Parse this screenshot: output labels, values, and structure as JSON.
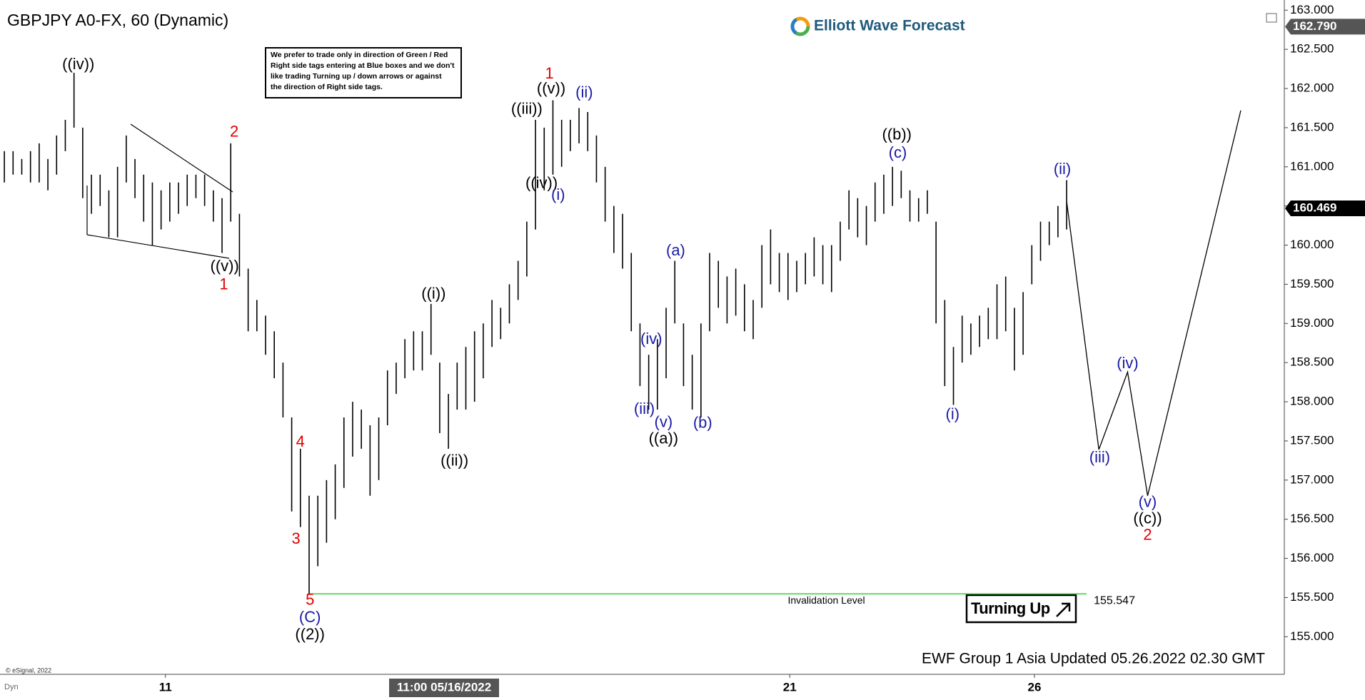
{
  "chart_data": {
    "type": "ohlc",
    "title": "GBPJPY A0-FX, 60 (Dynamic)",
    "logo": "Elliott Wave Forecast",
    "note": [
      "We prefer to trade only in direction of Green / Red",
      "Right side tags entering at Blue boxes and we don't",
      "like trading Turning up / down arrows or against",
      "the direction of Right side tags."
    ],
    "footer": "EWF Group 1 Asia  Updated 05.26.2022 02.30 GMT",
    "copyright": "© eSignal, 2022",
    "corner_label": "Dyn",
    "signal": "Turning Up",
    "bar_color": "#000000",
    "high": [
      161.2,
      161.2,
      161.1,
      161.2,
      161.3,
      161.1,
      161.4,
      161.6,
      162.2,
      161.5,
      160.9,
      160.9,
      160.7,
      161.0,
      161.4,
      161.1,
      160.9,
      160.8,
      160.7,
      160.8,
      160.8,
      160.9,
      160.9,
      160.9,
      160.7,
      160.6,
      161.3,
      160.4,
      159.7,
      159.3,
      159.1,
      158.9,
      158.5,
      157.8,
      157.4,
      156.8,
      156.8,
      157.0,
      157.2,
      157.8,
      158.0,
      157.9,
      157.7,
      157.8,
      158.4,
      158.5,
      158.8,
      158.9,
      158.9,
      159.25,
      158.5,
      158.1,
      158.5,
      158.7,
      158.9,
      159.0,
      159.3,
      159.2,
      159.5,
      159.8,
      160.3,
      161.6,
      161.5,
      161.85,
      161.6,
      161.6,
      161.75,
      161.7,
      161.4,
      161.0,
      160.5,
      160.4,
      159.9,
      159.0,
      158.6,
      158.8,
      159.2,
      159.8,
      159.0,
      158.6,
      159.0,
      159.9,
      159.8,
      159.6,
      159.7,
      159.5,
      159.3,
      160.0,
      160.2,
      159.9,
      159.9,
      159.8,
      159.9,
      160.1,
      160.0,
      160.0,
      160.3,
      160.7,
      160.6,
      160.5,
      160.8,
      160.9,
      161.0,
      160.95,
      160.7,
      160.6,
      160.7,
      160.3,
      159.3,
      158.7,
      159.1,
      159.0,
      159.1,
      159.2,
      159.5,
      159.6,
      159.2,
      159.4,
      160.0,
      160.3,
      160.3,
      160.5,
      160.83
    ],
    "low": [
      160.8,
      160.9,
      160.9,
      160.8,
      160.8,
      160.7,
      160.9,
      161.2,
      161.5,
      160.6,
      160.4,
      160.5,
      160.1,
      160.1,
      160.8,
      160.6,
      160.3,
      160.0,
      160.2,
      160.3,
      160.4,
      160.5,
      160.6,
      160.5,
      160.3,
      159.9,
      160.3,
      159.6,
      158.9,
      158.9,
      158.6,
      158.3,
      157.8,
      156.6,
      156.4,
      155.55,
      155.9,
      156.2,
      156.5,
      156.9,
      157.3,
      157.4,
      156.8,
      157.0,
      157.7,
      158.1,
      158.3,
      158.4,
      158.4,
      158.6,
      157.6,
      157.4,
      157.9,
      157.9,
      158.0,
      158.3,
      158.7,
      158.8,
      159.0,
      159.3,
      159.6,
      160.2,
      160.7,
      160.9,
      161.0,
      161.2,
      161.3,
      161.2,
      160.8,
      160.3,
      159.9,
      159.7,
      158.9,
      158.2,
      157.9,
      157.9,
      158.3,
      159.0,
      158.2,
      157.9,
      157.8,
      158.9,
      159.2,
      159.0,
      159.1,
      158.9,
      158.8,
      159.2,
      159.5,
      159.4,
      159.3,
      159.4,
      159.5,
      159.6,
      159.5,
      159.4,
      159.8,
      160.2,
      160.1,
      160.0,
      160.3,
      160.4,
      160.5,
      160.6,
      160.3,
      160.3,
      160.4,
      159.0,
      158.2,
      157.96,
      158.5,
      158.6,
      158.7,
      158.8,
      158.8,
      158.9,
      158.4,
      158.6,
      159.5,
      159.8,
      160.0,
      160.1,
      160.2
    ],
    "projection": {
      "color": "#000000",
      "x": [
        122,
        125.7,
        129,
        131.3,
        142
      ],
      "y": [
        160.56,
        157.39,
        158.38,
        156.8,
        161.72
      ]
    },
    "invalidation": {
      "value": 155.547,
      "text": "Invalidation Level",
      "x": [
        35,
        124.3
      ],
      "color": "#3ccc3c"
    },
    "price_tags": [
      {
        "value": 162.79,
        "label": "162.790",
        "color": "#555555"
      },
      {
        "value": 160.469,
        "label": "160.469",
        "color": "#000000"
      }
    ],
    "xlim": [
      -0.5,
      147
    ],
    "ylim": [
      154.52,
      163.13
    ],
    "yticks": [
      {
        "value": 155,
        "label": "155.000"
      },
      {
        "value": 155.5,
        "label": "155.500"
      },
      {
        "value": 156,
        "label": "156.000"
      },
      {
        "value": 156.5,
        "label": "156.500"
      },
      {
        "value": 157,
        "label": "157.000"
      },
      {
        "value": 157.5,
        "label": "157.500"
      },
      {
        "value": 158,
        "label": "158.000"
      },
      {
        "value": 158.5,
        "label": "158.500"
      },
      {
        "value": 159,
        "label": "159.000"
      },
      {
        "value": 159.5,
        "label": "159.500"
      },
      {
        "value": 160,
        "label": "160.000"
      },
      {
        "value": 160.5,
        "label": "160.500"
      },
      {
        "value": 161,
        "label": "161.000"
      },
      {
        "value": 161.5,
        "label": "161.500"
      },
      {
        "value": 162,
        "label": "162.000"
      },
      {
        "value": 162.5,
        "label": "162.500"
      },
      {
        "value": 163,
        "label": "163.000"
      }
    ],
    "xticks": [
      {
        "value": 18.5,
        "label": "11"
      },
      {
        "value": 90.2,
        "label": "21"
      },
      {
        "value": 118.3,
        "label": "26"
      }
    ],
    "cursor_label": {
      "value": 50.5,
      "label": "11:00 05/16/2022"
    },
    "annotations": [
      {
        "text": "((iv))",
        "x": 8.5,
        "y": 162.3,
        "color": "#000000"
      },
      {
        "text": "2",
        "x": 26.4,
        "y": 161.44,
        "color": "#e00000"
      },
      {
        "text": "((v))",
        "x": 25.3,
        "y": 159.72,
        "color": "#000000"
      },
      {
        "text": "1",
        "x": 25.2,
        "y": 159.49,
        "color": "#e00000"
      },
      {
        "text": "4",
        "x": 34,
        "y": 157.48,
        "color": "#e00000"
      },
      {
        "text": "3",
        "x": 33.5,
        "y": 156.24,
        "color": "#e00000"
      },
      {
        "text": "5",
        "x": 35.1,
        "y": 155.46,
        "color": "#e00000"
      },
      {
        "text": "(C)",
        "x": 35.1,
        "y": 155.24,
        "color": "#1a1aa6"
      },
      {
        "text": "((2))",
        "x": 35.1,
        "y": 155.02,
        "color": "#000000"
      },
      {
        "text": "((i))",
        "x": 49.3,
        "y": 159.37,
        "color": "#000000"
      },
      {
        "text": "((ii))",
        "x": 51.7,
        "y": 157.24,
        "color": "#000000"
      },
      {
        "text": "((iii))",
        "x": 60,
        "y": 161.73,
        "color": "#000000"
      },
      {
        "text": "((iv))",
        "x": 61.7,
        "y": 160.78,
        "color": "#000000"
      },
      {
        "text": "1",
        "x": 62.6,
        "y": 162.18,
        "color": "#e00000"
      },
      {
        "text": "((v))",
        "x": 62.8,
        "y": 161.99,
        "color": "#000000"
      },
      {
        "text": "(ii)",
        "x": 66.6,
        "y": 161.94,
        "color": "#1a1aa6"
      },
      {
        "text": "(i)",
        "x": 63.6,
        "y": 160.63,
        "color": "#1a1aa6"
      },
      {
        "text": "(a)",
        "x": 77.1,
        "y": 159.92,
        "color": "#1a1aa6"
      },
      {
        "text": "(iv)",
        "x": 74.3,
        "y": 158.79,
        "color": "#1a1aa6"
      },
      {
        "text": "(iii)",
        "x": 73.5,
        "y": 157.9,
        "color": "#1a1aa6"
      },
      {
        "text": "(v)",
        "x": 75.7,
        "y": 157.73,
        "color": "#1a1aa6"
      },
      {
        "text": "((a))",
        "x": 75.7,
        "y": 157.52,
        "color": "#000000"
      },
      {
        "text": "(b)",
        "x": 80.2,
        "y": 157.72,
        "color": "#1a1aa6"
      },
      {
        "text": "((b))",
        "x": 102.5,
        "y": 161.4,
        "color": "#000000"
      },
      {
        "text": "(c)",
        "x": 102.6,
        "y": 161.17,
        "color": "#1a1aa6"
      },
      {
        "text": "(i)",
        "x": 108.9,
        "y": 157.83,
        "color": "#1a1aa6"
      },
      {
        "text": "(ii)",
        "x": 121.5,
        "y": 160.96,
        "color": "#1a1aa6"
      },
      {
        "text": "(iii)",
        "x": 125.8,
        "y": 157.28,
        "color": "#1a1aa6"
      },
      {
        "text": "(iv)",
        "x": 129,
        "y": 158.48,
        "color": "#1a1aa6"
      },
      {
        "text": "(v)",
        "x": 131.3,
        "y": 156.71,
        "color": "#1a1aa6"
      },
      {
        "text": "((c))",
        "x": 131.3,
        "y": 156.5,
        "color": "#000000"
      },
      {
        "text": "2",
        "x": 131.3,
        "y": 156.29,
        "color": "#e00000"
      }
    ]
  }
}
